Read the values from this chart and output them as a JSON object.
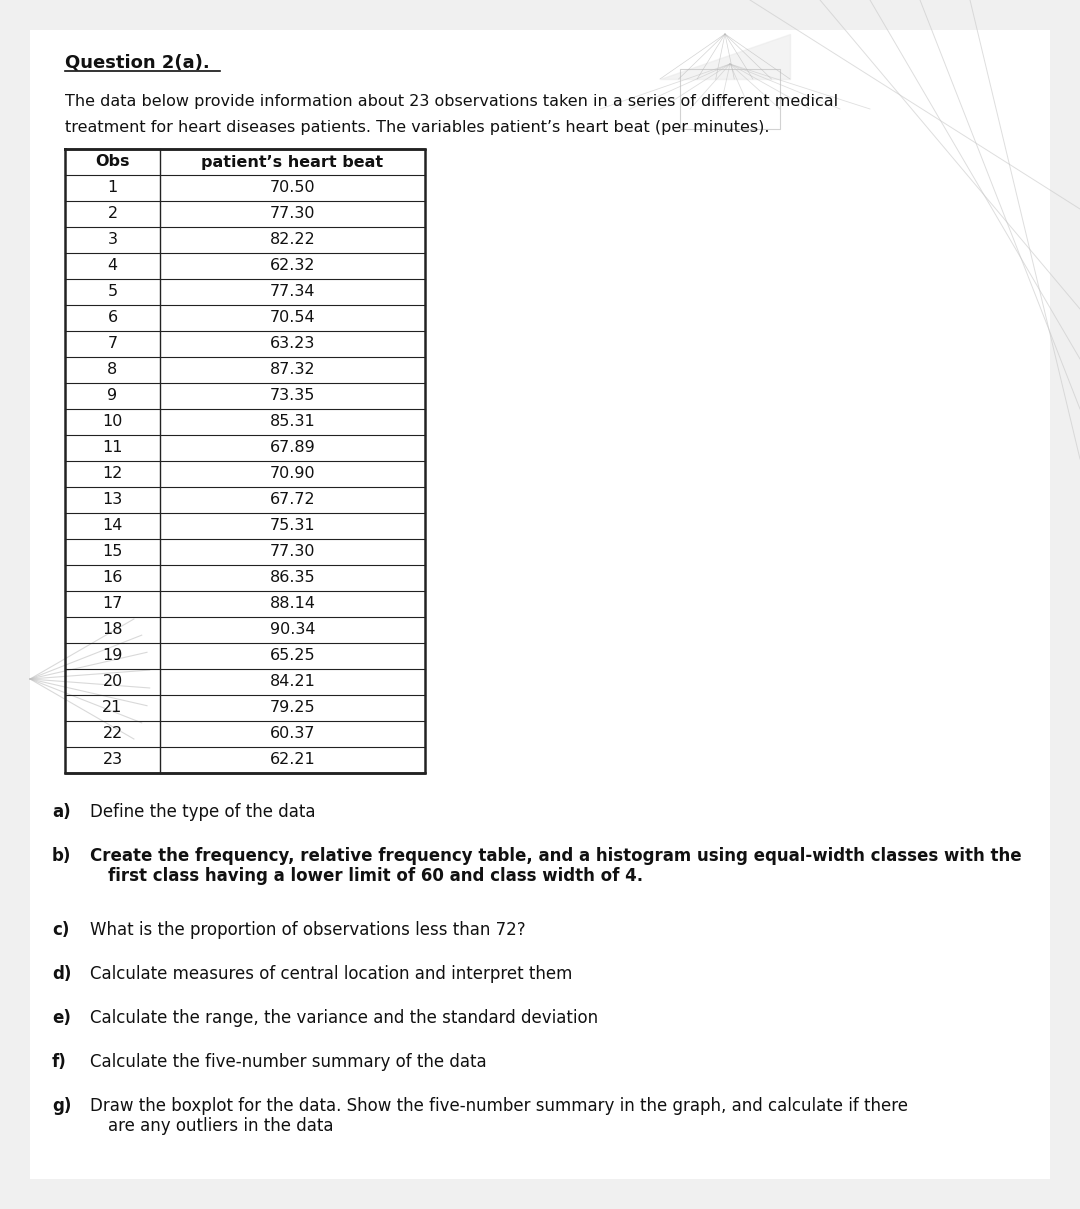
{
  "title": "Question 2(a).",
  "intro_line1": "The data below provide information about 23 observations taken in a series of different medical",
  "intro_line2": "treatment for heart diseases patients. The variables patient’s heart beat (per minutes).",
  "col_headers": [
    "Obs",
    "patient’s heart beat"
  ],
  "observations": [
    [
      1,
      "70.50"
    ],
    [
      2,
      "77.30"
    ],
    [
      3,
      "82.22"
    ],
    [
      4,
      "62.32"
    ],
    [
      5,
      "77.34"
    ],
    [
      6,
      "70.54"
    ],
    [
      7,
      "63.23"
    ],
    [
      8,
      "87.32"
    ],
    [
      9,
      "73.35"
    ],
    [
      10,
      "85.31"
    ],
    [
      11,
      "67.89"
    ],
    [
      12,
      "70.90"
    ],
    [
      13,
      "67.72"
    ],
    [
      14,
      "75.31"
    ],
    [
      15,
      "77.30"
    ],
    [
      16,
      "86.35"
    ],
    [
      17,
      "88.14"
    ],
    [
      18,
      "90.34"
    ],
    [
      19,
      "65.25"
    ],
    [
      20,
      "84.21"
    ],
    [
      21,
      "79.25"
    ],
    [
      22,
      "60.37"
    ],
    [
      23,
      "62.21"
    ]
  ],
  "questions": [
    {
      "label": "a)",
      "bold_label": true,
      "text": "Define the type of the data",
      "bold_text": false,
      "extra_lines": []
    },
    {
      "label": "b)",
      "bold_label": true,
      "text": "Create the frequency, relative frequency table, and a histogram using equal-width classes with the",
      "bold_text": true,
      "extra_lines": [
        "first class having a lower limit of 60 and class width of 4."
      ]
    },
    {
      "label": "c)",
      "bold_label": false,
      "text": "What is the proportion of observations less than 72?",
      "bold_text": false,
      "extra_lines": []
    },
    {
      "label": "d)",
      "bold_label": true,
      "text": "Calculate measures of central location and interpret them",
      "bold_text": false,
      "extra_lines": []
    },
    {
      "label": "e)",
      "bold_label": true,
      "text": "Calculate the range, the variance and the standard deviation",
      "bold_text": false,
      "extra_lines": []
    },
    {
      "label": "f)",
      "bold_label": false,
      "text": "Calculate the five-number summary of the data",
      "bold_text": false,
      "extra_lines": []
    },
    {
      "label": "g)",
      "bold_label": true,
      "text": "Draw the boxplot for the data. Show the five-number summary in the graph, and calculate if there",
      "bold_text": false,
      "extra_lines": [
        "are any outliers in the data"
      ]
    }
  ],
  "bg_color": "#f5f5f5",
  "text_color": "#1a1a1a",
  "table_border_color": "#333333"
}
